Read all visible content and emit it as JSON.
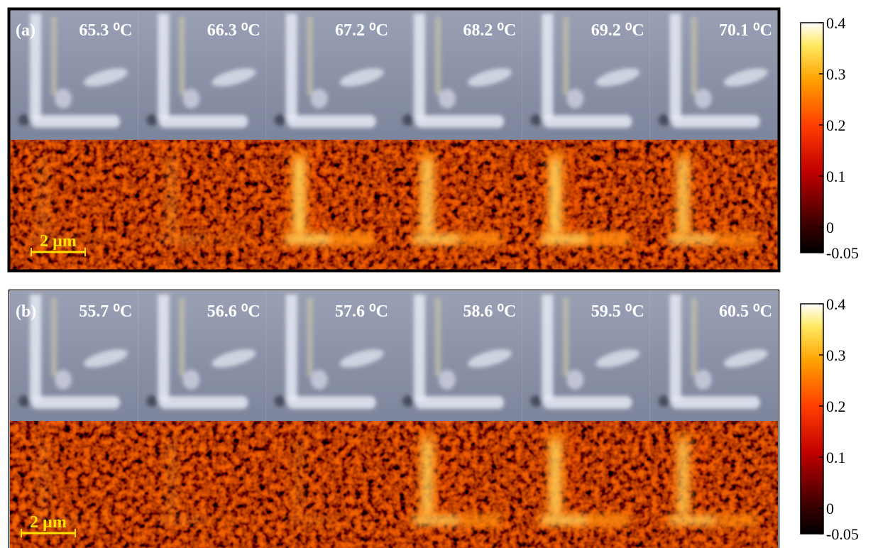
{
  "panels": [
    {
      "label": "(a)",
      "frames": [
        "65.3 ⁰C",
        "66.3 ⁰C",
        "67.2 ⁰C",
        "68.2 ⁰C",
        "69.2 ⁰C",
        "70.1 ⁰C"
      ],
      "scale_bar": "2 µm",
      "colorbar": {
        "lim": [
          -0.05,
          0.4
        ],
        "ticks": [
          0.4,
          0.3,
          0.2,
          0.1,
          0,
          -0.05
        ]
      }
    },
    {
      "label": "(b)",
      "frames": [
        "55.7 ⁰C",
        "56.6 ⁰C",
        "57.6 ⁰C",
        "58.6 ⁰C",
        "59.5 ⁰C",
        "60.5 ⁰C"
      ],
      "scale_bar": "2 µm",
      "colorbar": {
        "lim": [
          -0.05,
          0.4
        ],
        "ticks": [
          0.4,
          0.3,
          0.2,
          0.1,
          0,
          -0.05
        ]
      }
    }
  ]
}
